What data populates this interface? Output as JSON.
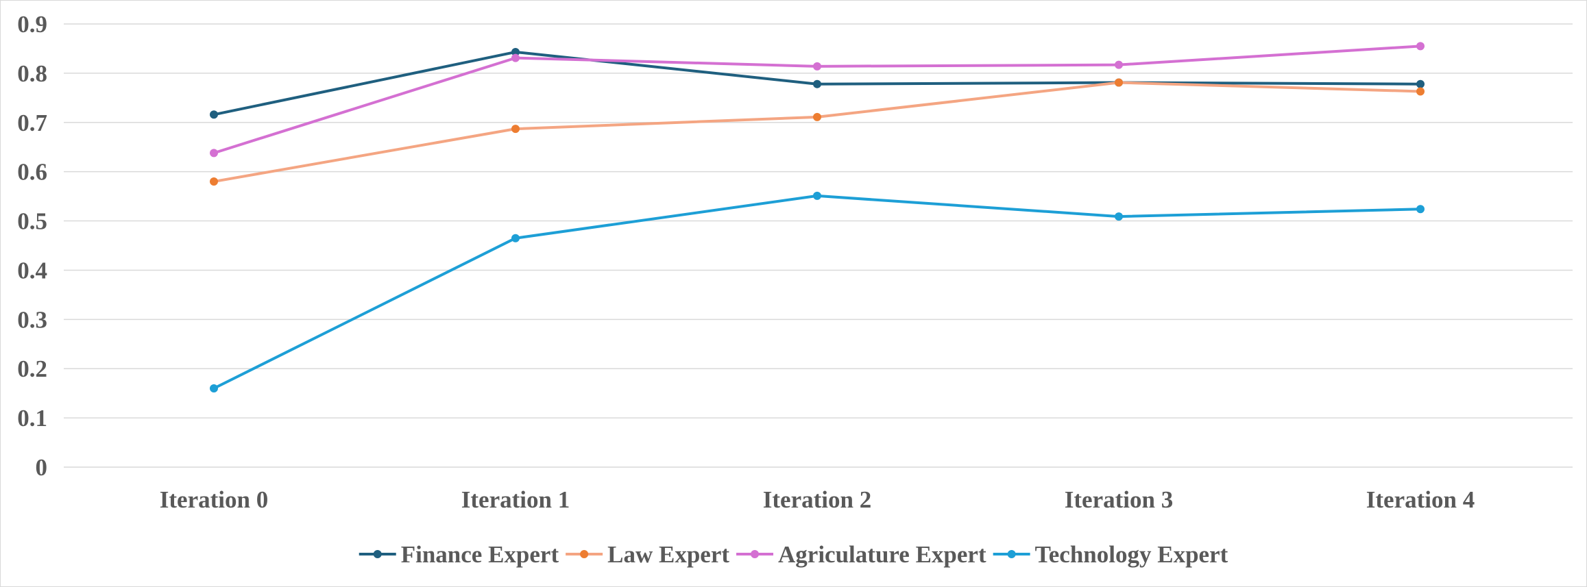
{
  "chart_data": {
    "type": "line",
    "title": "",
    "xlabel": "",
    "ylabel": "",
    "categories": [
      "Iteration 0",
      "Iteration 1",
      "Iteration 2",
      "Iteration 3",
      "Iteration 4"
    ],
    "ylim": [
      0,
      0.9
    ],
    "yticks": [
      0,
      0.1,
      0.2,
      0.3,
      0.4,
      0.5,
      0.6,
      0.7,
      0.8,
      0.9
    ],
    "ytick_labels": [
      "0",
      "0.1",
      "0.2",
      "0.3",
      "0.4",
      "0.5",
      "0.6",
      "0.7",
      "0.8",
      "0.9"
    ],
    "grid": true,
    "legend_position": "bottom",
    "series": [
      {
        "name": "Finance Expert",
        "line_color": "#1f5f7f",
        "marker_color": "#1f5f7f",
        "values": [
          0.716,
          0.843,
          0.778,
          0.781,
          0.778
        ]
      },
      {
        "name": "Law Expert",
        "line_color": "#f4a582",
        "marker_color": "#ed7d31",
        "values": [
          0.58,
          0.687,
          0.711,
          0.781,
          0.763
        ]
      },
      {
        "name": "Agriculature Expert",
        "line_color": "#d470d2",
        "marker_color": "#d470d2",
        "values": [
          0.638,
          0.831,
          0.814,
          0.817,
          0.855
        ]
      },
      {
        "name": "Technology Expert",
        "line_color": "#1d9fd6",
        "marker_color": "#1d9fd6",
        "values": [
          0.16,
          0.465,
          0.551,
          0.509,
          0.524
        ]
      }
    ]
  }
}
